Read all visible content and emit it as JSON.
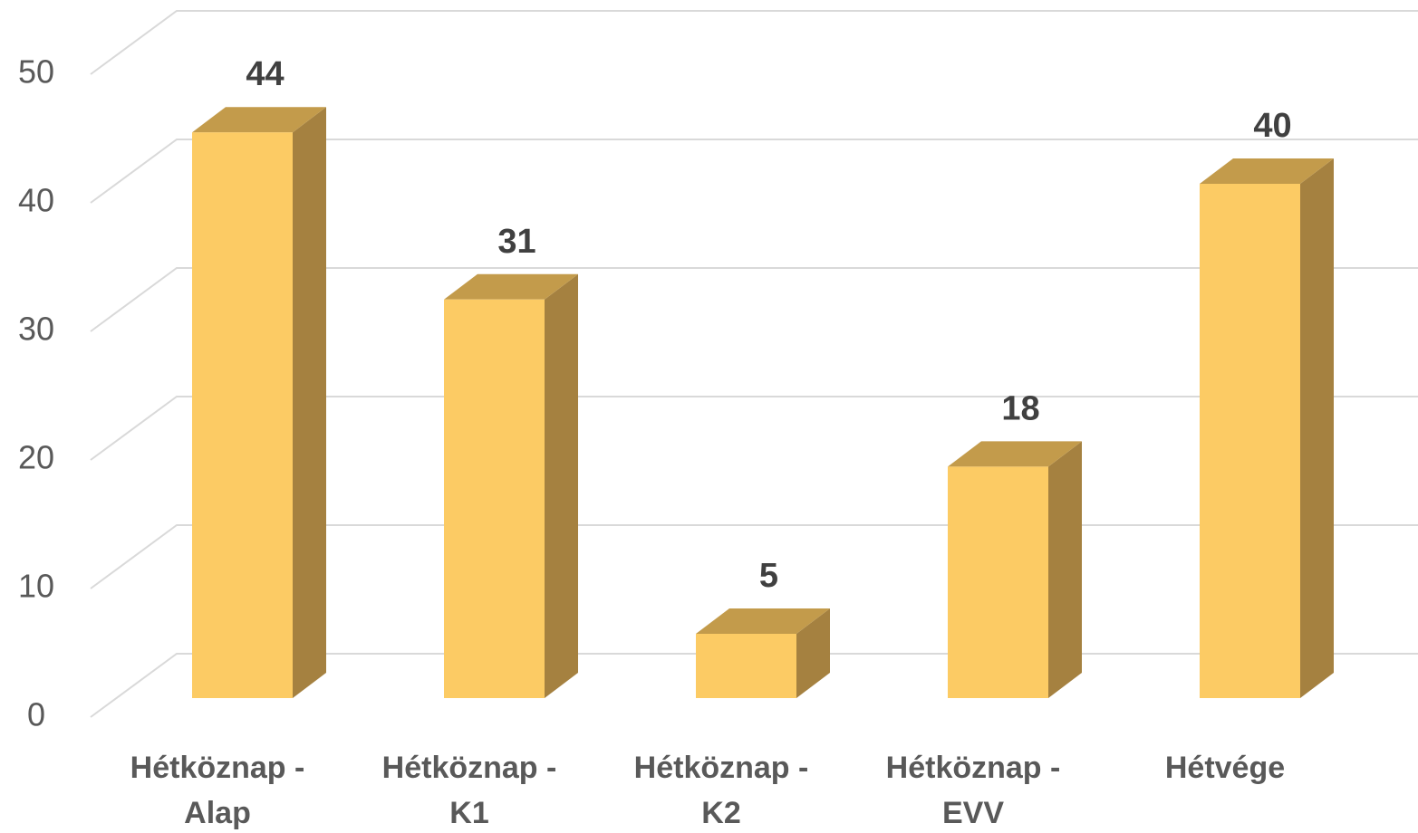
{
  "chart_data": {
    "type": "bar3d",
    "categories": [
      [
        "Hétköznap -",
        "Alap"
      ],
      [
        "Hétköznap -",
        "K1"
      ],
      [
        "Hétköznap -",
        "K2"
      ],
      [
        "Hétköznap -",
        "EVV"
      ],
      [
        "Hétvége"
      ]
    ],
    "values": [
      44,
      31,
      5,
      18,
      40
    ],
    "color": "#fccb64",
    "side_color": "#a58140",
    "top_color": "#c39b4b",
    "ylim": [
      0,
      50
    ],
    "yticks": [
      0,
      10,
      20,
      30,
      40,
      50
    ],
    "grid": true
  }
}
